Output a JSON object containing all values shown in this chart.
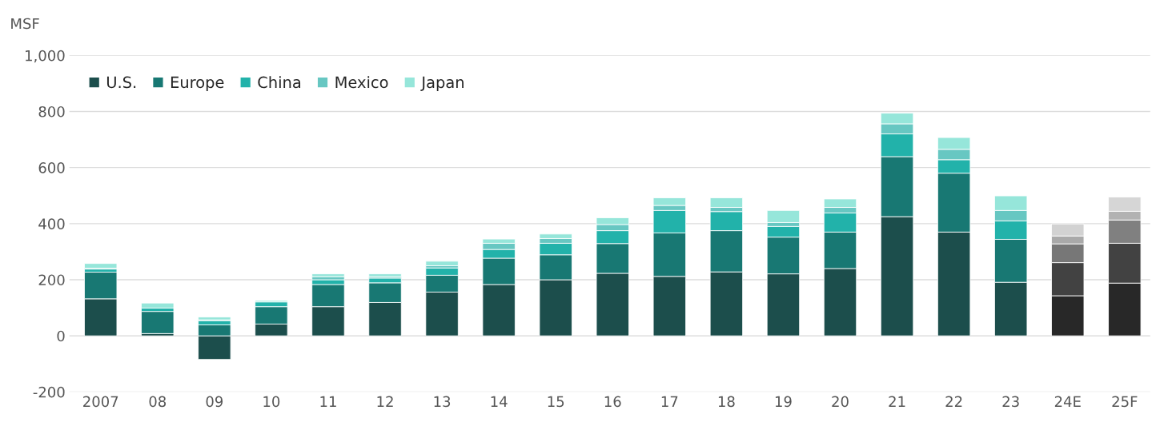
{
  "chart_data": {
    "type": "bar",
    "stacked": true,
    "ylabel": "MSF",
    "categories": [
      "2007",
      "08",
      "09",
      "10",
      "11",
      "12",
      "13",
      "14",
      "15",
      "16",
      "17",
      "18",
      "19",
      "20",
      "21",
      "22",
      "23",
      "24E",
      "25F"
    ],
    "series": [
      {
        "name": "U.S.",
        "color": "#1c4e4c",
        "colors": [
          "#1c4e4c",
          "#1c4e4c",
          "#1c4e4c",
          "#1c4e4c",
          "#1c4e4c",
          "#1c4e4c",
          "#1c4e4c",
          "#1c4e4c",
          "#1c4e4c",
          "#1c4e4c",
          "#1c4e4c",
          "#1c4e4c",
          "#1c4e4c",
          "#1c4e4c",
          "#1c4e4c",
          "#1c4e4c",
          "#1c4e4c",
          "#282828",
          "#282828"
        ],
        "values": [
          132,
          8,
          -84,
          42,
          104,
          119,
          156,
          183,
          200,
          223,
          212,
          228,
          221,
          240,
          425,
          370,
          191,
          143,
          188
        ]
      },
      {
        "name": "Europe",
        "color": "#187873",
        "colors": [
          "#187873",
          "#187873",
          "#187873",
          "#187873",
          "#187873",
          "#187873",
          "#187873",
          "#187873",
          "#187873",
          "#187873",
          "#187873",
          "#187873",
          "#187873",
          "#187873",
          "#187873",
          "#187873",
          "#187873",
          "#424242",
          "#424242"
        ],
        "values": [
          95,
          79,
          39,
          62,
          79,
          70,
          60,
          94,
          89,
          106,
          155,
          147,
          131,
          130,
          214,
          210,
          153,
          118,
          142
        ]
      },
      {
        "name": "China",
        "color": "#22b2aa",
        "colors": [
          "#22b2aa",
          "#22b2aa",
          "#22b2aa",
          "#22b2aa",
          "#22b2aa",
          "#22b2aa",
          "#22b2aa",
          "#22b2aa",
          "#22b2aa",
          "#22b2aa",
          "#22b2aa",
          "#22b2aa",
          "#22b2aa",
          "#22b2aa",
          "#22b2aa",
          "#22b2aa",
          "#22b2aa",
          "#777777",
          "#808080"
        ],
        "values": [
          11,
          12,
          15,
          17,
          17,
          17,
          26,
          31,
          41,
          46,
          80,
          68,
          38,
          68,
          81,
          48,
          66,
          67,
          83
        ]
      },
      {
        "name": "Mexico",
        "color": "#67c7c2",
        "colors": [
          "#67c7c2",
          "#67c7c2",
          "#67c7c2",
          "#67c7c2",
          "#67c7c2",
          "#67c7c2",
          "#67c7c2",
          "#67c7c2",
          "#67c7c2",
          "#67c7c2",
          "#67c7c2",
          "#67c7c2",
          "#67c7c2",
          "#67c7c2",
          "#67c7c2",
          "#67c7c2",
          "#67c7c2",
          "#a9a9a9",
          "#b2b2b2"
        ],
        "values": [
          3,
          null,
          3,
          null,
          11,
          5,
          8,
          22,
          17,
          22,
          18,
          15,
          14,
          20,
          36,
          37,
          37,
          28,
          31
        ]
      },
      {
        "name": "Japan",
        "color": "#96e6da",
        "colors": [
          "#96e6da",
          "#96e6da",
          "#96e6da",
          "#96e6da",
          "#96e6da",
          "#96e6da",
          "#96e6da",
          "#96e6da",
          "#96e6da",
          "#96e6da",
          "#96e6da",
          "#96e6da",
          "#96e6da",
          "#96e6da",
          "#96e6da",
          "#96e6da",
          "#96e6da",
          "#d2d2d2",
          "#d6d6d6"
        ],
        "values": [
          17,
          18,
          10,
          5,
          10,
          10,
          16,
          15,
          16,
          24,
          27,
          34,
          43,
          30,
          38,
          42,
          52,
          43,
          51
        ]
      }
    ],
    "ylim": [
      -200,
      1000
    ],
    "yticks": [
      -200,
      0,
      200,
      400,
      600,
      800,
      {
        "value": 1000,
        "label": "1,000"
      }
    ],
    "grid": "y",
    "legend": "top left"
  }
}
